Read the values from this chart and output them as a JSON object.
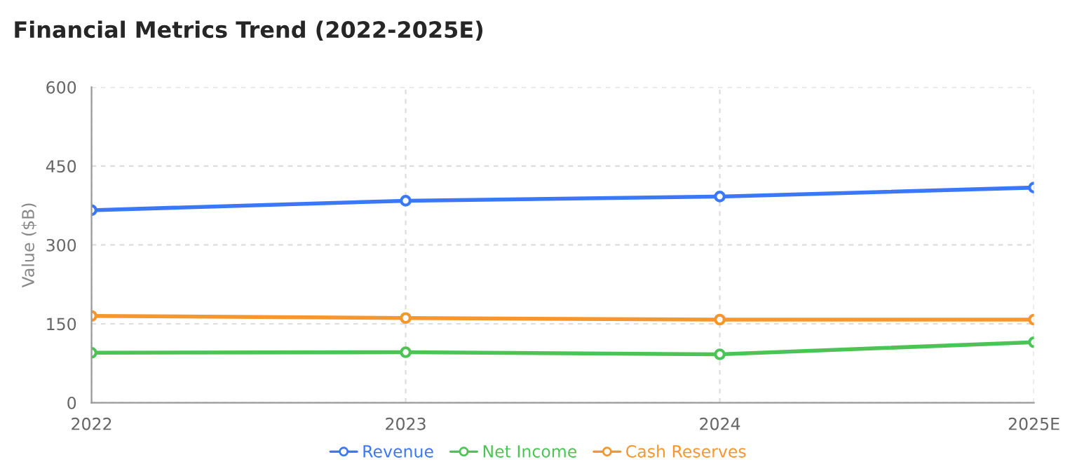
{
  "chart_data": {
    "type": "line",
    "title": "Financial Metrics Trend (2022-2025E)",
    "ylabel": "Value ($B)",
    "categories": [
      "2022",
      "2023",
      "2024",
      "2025E"
    ],
    "series": [
      {
        "name": "Revenue",
        "color": "#3b78f7",
        "values": [
          366,
          384,
          392,
          409
        ]
      },
      {
        "name": "Net Income",
        "color": "#4cc455",
        "values": [
          95,
          96,
          92,
          115
        ]
      },
      {
        "name": "Cash Reserves",
        "color": "#f7962c",
        "values": [
          165,
          161,
          158,
          158
        ]
      }
    ],
    "ylim": [
      0,
      600
    ],
    "yticks": [
      0,
      150,
      300,
      450,
      600
    ],
    "grid": true,
    "legend": "bottom",
    "marker": "circle",
    "line_style": "solid"
  }
}
